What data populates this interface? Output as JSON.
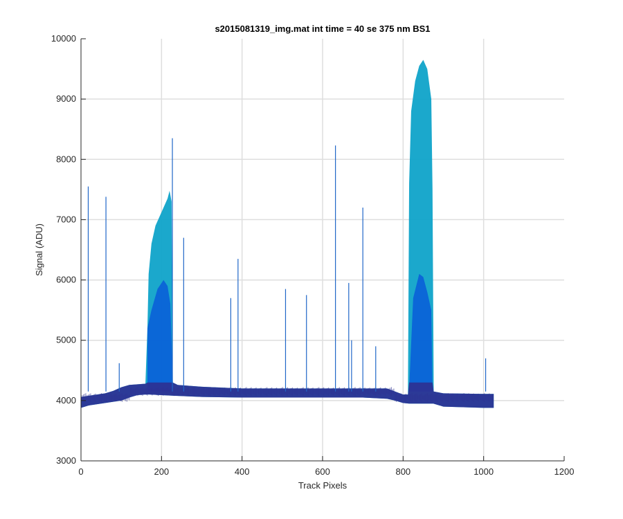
{
  "chart_data": {
    "type": "area",
    "title": "s2015081319_img.mat int time = 40 se  375 nm BS1",
    "xlabel": "Track Pixels",
    "ylabel": "Signal (ADU)",
    "xlim": [
      0,
      1200
    ],
    "ylim": [
      3000,
      10000
    ],
    "xticks": [
      0,
      200,
      400,
      600,
      800,
      1000,
      1200
    ],
    "yticks": [
      3000,
      4000,
      5000,
      6000,
      7000,
      8000,
      9000,
      10000
    ],
    "xtick_labels": [
      "0",
      "200",
      "400",
      "600",
      "800",
      "1000",
      "1200"
    ],
    "ytick_labels": [
      "3000",
      "4000",
      "5000",
      "6000",
      "7000",
      "8000",
      "9000",
      "10000"
    ],
    "grid": true,
    "colors": {
      "baseline": "#2e3192",
      "mid": "#1f66c8",
      "inner": "#0a5fd8",
      "peak": "#0fa3c9"
    },
    "series": [
      {
        "values_description": "upper envelope",
        "x": [
          0,
          20,
          40,
          60,
          80,
          100,
          120,
          140,
          160,
          165,
          168,
          175,
          185,
          195,
          205,
          215,
          220,
          225,
          228,
          240,
          300,
          400,
          500,
          600,
          700,
          760,
          780,
          800,
          812,
          815,
          820,
          830,
          840,
          850,
          860,
          870,
          873,
          876,
          900,
          1000,
          1025
        ],
        "y": [
          4060,
          4080,
          4100,
          4120,
          4160,
          4220,
          4260,
          4270,
          4280,
          5200,
          6100,
          6600,
          6900,
          7050,
          7200,
          7350,
          7480,
          7300,
          4300,
          4260,
          4230,
          4200,
          4200,
          4200,
          4200,
          4200,
          4150,
          4100,
          4100,
          7600,
          8800,
          9300,
          9550,
          9650,
          9500,
          9000,
          7500,
          4150,
          4120,
          4110,
          4110
        ]
      },
      {
        "values_description": "inner dense region",
        "x": [
          165,
          175,
          190,
          205,
          215,
          222,
          228,
          815,
          825,
          840,
          850,
          860,
          870,
          873
        ],
        "y": [
          5200,
          5500,
          5850,
          6000,
          5900,
          5600,
          4300,
          4200,
          5700,
          6100,
          6050,
          5800,
          5500,
          4200
        ]
      },
      {
        "values_description": "lower envelope",
        "x": [
          0,
          20,
          40,
          60,
          80,
          100,
          120,
          140,
          160,
          170,
          230,
          300,
          400,
          500,
          600,
          700,
          760,
          780,
          800,
          815,
          860,
          875,
          900,
          1000,
          1025
        ],
        "y": [
          3880,
          3920,
          3940,
          3960,
          3980,
          4000,
          4050,
          4090,
          4100,
          4100,
          4080,
          4060,
          4050,
          4050,
          4050,
          4050,
          4030,
          4000,
          3960,
          3950,
          3950,
          3950,
          3900,
          3880,
          3880
        ]
      }
    ],
    "spikes": [
      {
        "x": 18,
        "y": 7550
      },
      {
        "x": 62,
        "y": 7380
      },
      {
        "x": 95,
        "y": 4620
      },
      {
        "x": 227,
        "y": 8350
      },
      {
        "x": 255,
        "y": 6700
      },
      {
        "x": 372,
        "y": 5700
      },
      {
        "x": 390,
        "y": 6350
      },
      {
        "x": 508,
        "y": 5850
      },
      {
        "x": 560,
        "y": 5750
      },
      {
        "x": 632,
        "y": 8230
      },
      {
        "x": 665,
        "y": 5950
      },
      {
        "x": 672,
        "y": 5000
      },
      {
        "x": 700,
        "y": 7200
      },
      {
        "x": 732,
        "y": 4900
      },
      {
        "x": 1005,
        "y": 4700
      }
    ]
  }
}
